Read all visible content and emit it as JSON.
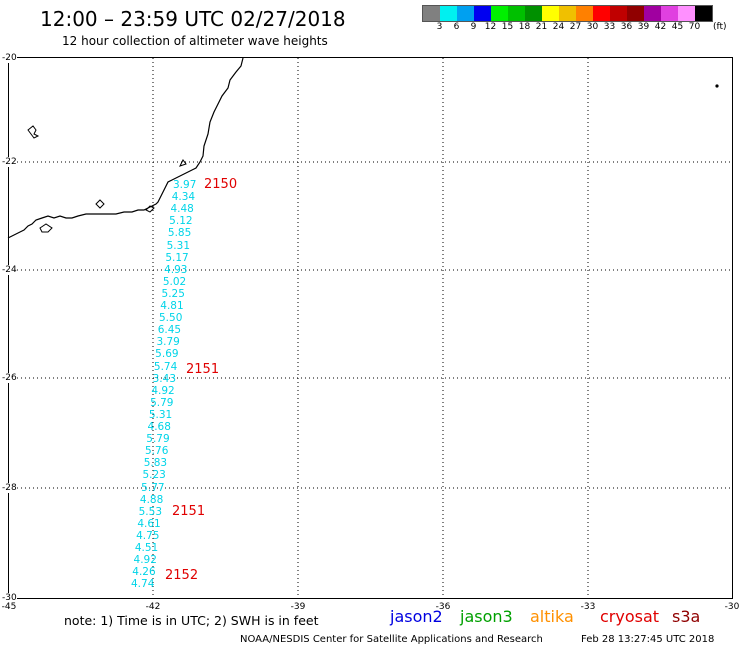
{
  "header": {
    "title": "12:00 – 23:59 UTC 02/27/2018",
    "subtitle": "12 hour collection of altimeter wave heights"
  },
  "legend": {
    "unit": "(ft)",
    "colors": [
      "#808080",
      "#00f0f0",
      "#00a0f0",
      "#0000f0",
      "#00f000",
      "#00c000",
      "#009000",
      "#ffff00",
      "#f0c000",
      "#ff8000",
      "#ff0000",
      "#c00000",
      "#900000",
      "#a000a0",
      "#e040e0",
      "#ff90ff",
      "#000000"
    ],
    "labels": [
      "3",
      "6",
      "9",
      "12",
      "15",
      "18",
      "21",
      "24",
      "27",
      "30",
      "33",
      "36",
      "39",
      "42",
      "45",
      "70"
    ]
  },
  "axes": {
    "lat_labels": [
      "-20",
      "-22",
      "-24",
      "-26",
      "-28",
      "-30"
    ],
    "lon_labels": [
      "-45",
      "-42",
      "-39",
      "-36",
      "-33",
      "-30"
    ]
  },
  "passes": [
    {
      "label": "2150"
    },
    {
      "label": "2151"
    },
    {
      "label": "2151"
    },
    {
      "label": "2152"
    }
  ],
  "swh_values": [
    "3.97",
    "4.34",
    "4.48",
    "5.12",
    "5.85",
    "5.31",
    "5.17",
    "4.93",
    "5.02",
    "5.25",
    "4.81",
    "5.50",
    "6.45",
    "3.79",
    "5.69",
    "5.74",
    "3.43",
    "4.92",
    "5.79",
    "5.31",
    "4.68",
    "5.79",
    "5.76",
    "5.83",
    "5.23",
    "5.77",
    "4.88",
    "5.53",
    "4.61",
    "4.75",
    "4.51",
    "4.92",
    "4.26",
    "4.74"
  ],
  "footer": {
    "note": "note:  1) Time is in UTC;  2) SWH is in feet",
    "satellites": [
      {
        "name": "jason2",
        "color": "#0000e0"
      },
      {
        "name": "jason3",
        "color": "#00a000"
      },
      {
        "name": "altika",
        "color": "#ff9000"
      },
      {
        "name": "cryosat",
        "color": "#e00000"
      },
      {
        "name": "s3a",
        "color": "#900000"
      }
    ],
    "credit": "NOAA/NESDIS Center for Satellite Applications and Research",
    "timestamp": "Feb 28 13:27:45 UTC 2018"
  }
}
